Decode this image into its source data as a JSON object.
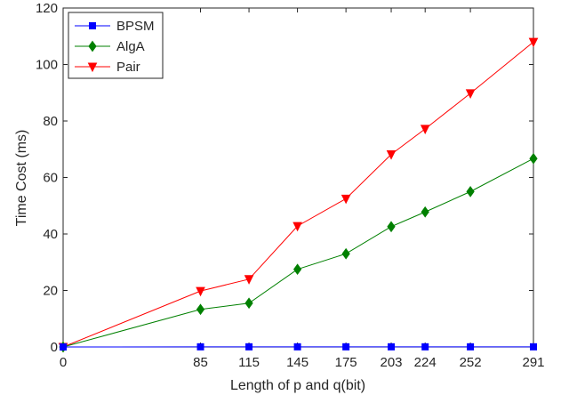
{
  "chart_data": {
    "type": "line",
    "xlabel": "Length of p and q(bit)",
    "ylabel": "Time Cost (ms)",
    "xlim": [
      0,
      291
    ],
    "ylim": [
      0,
      120
    ],
    "x_ticks": [
      0,
      85,
      115,
      145,
      175,
      203,
      224,
      252,
      291
    ],
    "y_ticks": [
      0,
      20,
      40,
      60,
      80,
      100,
      120
    ],
    "x": [
      0,
      85,
      115,
      145,
      175,
      203,
      224,
      252,
      291
    ],
    "grid": false,
    "legend_position": "top-left",
    "series": [
      {
        "name": "BPSM",
        "color": "#0000ff",
        "marker": "square",
        "values": [
          0,
          0.05,
          0.05,
          0.05,
          0.05,
          0.05,
          0.05,
          0.05,
          0.05
        ]
      },
      {
        "name": "AlgA",
        "color": "#008000",
        "marker": "diamond",
        "values": [
          0,
          13.3,
          15.5,
          27.5,
          33,
          42.6,
          47.8,
          55,
          66.7
        ]
      },
      {
        "name": "Pair",
        "color": "#ff0000",
        "marker": "triangle-down",
        "values": [
          0,
          19.8,
          24,
          42.8,
          52.5,
          68.2,
          77.2,
          89.8,
          108
        ]
      }
    ]
  }
}
